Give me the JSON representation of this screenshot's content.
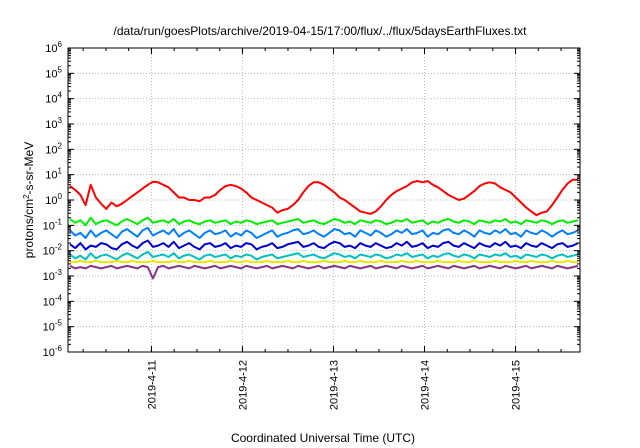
{
  "chart_data": {
    "type": "line",
    "title": "/data/run/goesPlots/archive/2019-04-15/17:00/flux/../flux/5daysEarthFluxes.txt",
    "xlabel": "Coordinated Universal Time (UTC)",
    "ylabel_parts": [
      "protons/cm",
      "2",
      "-s-sr-MeV"
    ],
    "y_scale": "log",
    "ylim_exp": [
      -6,
      6
    ],
    "y_ticks": [
      {
        "exp": "-6"
      },
      {
        "exp": "-5"
      },
      {
        "exp": "-4"
      },
      {
        "exp": "-3"
      },
      {
        "exp": "-2"
      },
      {
        "exp": "-1"
      },
      {
        "exp": "0"
      },
      {
        "exp": "1"
      },
      {
        "exp": "2"
      },
      {
        "exp": "3"
      },
      {
        "exp": "4"
      },
      {
        "exp": "5"
      },
      {
        "exp": "6"
      }
    ],
    "y_base": "10",
    "x_range_days": [
      "2019-04-10 02:00",
      "2019-04-15 17:00"
    ],
    "x_ticks": [
      "2019-4-11",
      "2019-4-12",
      "2019-4-13",
      "2019-4-14",
      "2019-4-15"
    ],
    "grid": true,
    "legend": "none",
    "series_note": "approximate log10 flux values sampled evenly across the time range",
    "series": [
      {
        "color": "#ff0000",
        "log_values": [
          0.55,
          0.4,
          0.2,
          -0.2,
          0.6,
          0.1,
          -0.15,
          -0.35,
          -0.1,
          -0.25,
          -0.15,
          0.0,
          0.15,
          0.3,
          0.45,
          0.6,
          0.72,
          0.7,
          0.6,
          0.5,
          0.3,
          0.1,
          0.1,
          0.0,
          0.0,
          -0.05,
          0.1,
          0.1,
          0.2,
          0.4,
          0.55,
          0.6,
          0.55,
          0.45,
          0.3,
          0.1,
          0.0,
          -0.1,
          -0.2,
          -0.3,
          -0.5,
          -0.4,
          -0.35,
          -0.2,
          0.0,
          0.3,
          0.55,
          0.7,
          0.7,
          0.6,
          0.45,
          0.3,
          0.1,
          0.0,
          -0.15,
          -0.3,
          -0.45,
          -0.5,
          -0.55,
          -0.45,
          -0.25,
          0.0,
          0.2,
          0.35,
          0.45,
          0.55,
          0.7,
          0.75,
          0.7,
          0.75,
          0.6,
          0.5,
          0.35,
          0.2,
          0.1,
          0.0,
          0.05,
          0.2,
          0.35,
          0.55,
          0.65,
          0.7,
          0.65,
          0.5,
          0.4,
          0.3,
          0.1,
          -0.1,
          -0.3,
          -0.45,
          -0.6,
          -0.5,
          -0.45,
          -0.2,
          0.1,
          0.4,
          0.65,
          0.8,
          0.8
        ]
      },
      {
        "color": "#00ee00",
        "log_values": [
          -0.75,
          -0.9,
          -0.8,
          -1.0,
          -0.7,
          -0.95,
          -0.85,
          -0.8,
          -0.9,
          -1.0,
          -0.85,
          -0.75,
          -0.85,
          -0.95,
          -0.8,
          -0.7,
          -0.9,
          -0.85,
          -0.8,
          -0.9,
          -0.75,
          -0.95,
          -0.85,
          -0.8,
          -0.9,
          -0.95,
          -0.85,
          -0.8,
          -0.9,
          -0.85,
          -0.8,
          -0.95,
          -0.85,
          -0.9,
          -0.8,
          -0.85,
          -0.95,
          -0.9,
          -0.85,
          -0.8,
          -0.95,
          -0.9,
          -0.85,
          -0.8,
          -0.75,
          -0.9,
          -0.85,
          -0.8,
          -0.9,
          -0.95,
          -0.85,
          -0.75,
          -0.8,
          -0.9,
          -0.85,
          -0.95,
          -0.8,
          -0.85,
          -0.9,
          -0.8,
          -0.85,
          -0.95,
          -0.9,
          -0.8,
          -0.85,
          -0.75,
          -0.9,
          -0.85,
          -0.8,
          -0.95,
          -0.85,
          -0.9,
          -0.8,
          -0.75,
          -0.85,
          -0.9,
          -0.8,
          -0.85,
          -0.95,
          -0.8,
          -0.85,
          -0.9,
          -0.8,
          -0.85,
          -0.75,
          -0.9,
          -0.85,
          -0.95,
          -0.8,
          -0.85,
          -0.9,
          -0.8,
          -0.85,
          -0.95,
          -0.85,
          -0.8,
          -0.9,
          -0.85,
          -0.8
        ]
      },
      {
        "color": "#0080ff",
        "log_values": [
          -1.2,
          -1.4,
          -1.3,
          -1.5,
          -1.2,
          -1.45,
          -1.3,
          -1.2,
          -1.35,
          -1.5,
          -1.25,
          -1.15,
          -1.3,
          -1.45,
          -1.2,
          -1.1,
          -1.4,
          -1.3,
          -1.2,
          -1.35,
          -1.15,
          -1.45,
          -1.3,
          -1.2,
          -1.35,
          -1.5,
          -1.3,
          -1.2,
          -1.35,
          -1.3,
          -1.2,
          -1.45,
          -1.3,
          -1.4,
          -1.2,
          -1.3,
          -1.5,
          -1.4,
          -1.3,
          -1.2,
          -1.45,
          -1.35,
          -1.3,
          -1.2,
          -1.15,
          -1.35,
          -1.3,
          -1.2,
          -1.35,
          -1.45,
          -1.3,
          -1.15,
          -1.2,
          -1.35,
          -1.3,
          -1.45,
          -1.2,
          -1.3,
          -1.4,
          -1.2,
          -1.3,
          -1.45,
          -1.35,
          -1.2,
          -1.3,
          -1.15,
          -1.35,
          -1.3,
          -1.2,
          -1.45,
          -1.3,
          -1.35,
          -1.2,
          -1.15,
          -1.3,
          -1.35,
          -1.2,
          -1.3,
          -1.45,
          -1.2,
          -1.3,
          -1.35,
          -1.2,
          -1.3,
          -1.15,
          -1.35,
          -1.3,
          -1.45,
          -1.2,
          -1.3,
          -1.35,
          -1.2,
          -1.3,
          -1.45,
          -1.3,
          -1.2,
          -1.35,
          -1.3,
          -1.2
        ]
      },
      {
        "color": "#0000cc",
        "log_values": [
          -1.75,
          -1.9,
          -1.7,
          -1.95,
          -1.8,
          -1.85,
          -1.7,
          -1.75,
          -1.9,
          -1.95,
          -1.75,
          -1.65,
          -1.8,
          -1.9,
          -1.7,
          -1.6,
          -1.85,
          -1.8,
          -1.7,
          -1.85,
          -1.65,
          -1.9,
          -1.8,
          -1.7,
          -1.85,
          -1.95,
          -1.75,
          -1.7,
          -1.85,
          -1.8,
          -1.7,
          -1.9,
          -1.8,
          -1.85,
          -1.7,
          -1.75,
          -1.95,
          -1.85,
          -1.8,
          -1.7,
          -1.9,
          -1.85,
          -1.75,
          -1.7,
          -1.65,
          -1.85,
          -1.8,
          -1.7,
          -1.85,
          -1.9,
          -1.75,
          -1.65,
          -1.7,
          -1.85,
          -1.8,
          -1.9,
          -1.7,
          -1.8,
          -1.85,
          -1.7,
          -1.8,
          -1.9,
          -1.85,
          -1.7,
          -1.8,
          -1.65,
          -1.85,
          -1.8,
          -1.7,
          -1.9,
          -1.8,
          -1.85,
          -1.7,
          -1.65,
          -1.8,
          -1.85,
          -1.7,
          -1.8,
          -1.9,
          -1.7,
          -1.8,
          -1.85,
          -1.7,
          -1.8,
          -1.65,
          -1.85,
          -1.8,
          -1.9,
          -1.7,
          -1.8,
          -1.85,
          -1.7,
          -1.8,
          -1.9,
          -1.75,
          -1.7,
          -1.85,
          -1.8,
          -1.7
        ]
      },
      {
        "color": "#00c0c0",
        "log_values": [
          -2.15,
          -2.3,
          -2.2,
          -2.35,
          -2.1,
          -2.3,
          -2.2,
          -2.15,
          -2.25,
          -2.35,
          -2.2,
          -2.1,
          -2.2,
          -2.3,
          -2.15,
          -2.05,
          -2.25,
          -2.2,
          -2.15,
          -2.25,
          -2.1,
          -2.3,
          -2.2,
          -2.15,
          -2.25,
          -2.35,
          -2.2,
          -2.15,
          -2.25,
          -2.2,
          -2.15,
          -2.3,
          -2.2,
          -2.25,
          -2.15,
          -2.2,
          -2.35,
          -2.25,
          -2.2,
          -2.15,
          -2.3,
          -2.25,
          -2.2,
          -2.15,
          -2.1,
          -2.25,
          -2.2,
          -2.15,
          -2.25,
          -2.3,
          -2.2,
          -2.1,
          -2.15,
          -2.25,
          -2.2,
          -2.3,
          -2.15,
          -2.2,
          -2.25,
          -2.15,
          -2.2,
          -2.3,
          -2.25,
          -2.15,
          -2.2,
          -2.1,
          -2.25,
          -2.2,
          -2.15,
          -2.3,
          -2.2,
          -2.25,
          -2.15,
          -2.1,
          -2.2,
          -2.25,
          -2.15,
          -2.2,
          -2.3,
          -2.15,
          -2.2,
          -2.25,
          -2.15,
          -2.2,
          -2.1,
          -2.25,
          -2.2,
          -2.3,
          -2.15,
          -2.2,
          -2.25,
          -2.15,
          -2.2,
          -2.3,
          -2.2,
          -2.15,
          -2.25,
          -2.2,
          -2.15
        ]
      },
      {
        "color": "#e8e800",
        "log_values": [
          -2.45,
          -2.45,
          -2.4,
          -2.45,
          -2.45,
          -2.4,
          -2.45,
          -2.45,
          -2.45,
          -2.4,
          -2.45,
          -2.45,
          -2.4,
          -2.45,
          -2.45,
          -2.45,
          -2.4,
          -2.45,
          -2.45,
          -2.45,
          -2.4,
          -2.45,
          -2.45,
          -2.4,
          -2.45,
          -2.45,
          -2.45,
          -2.4,
          -2.45,
          -2.45,
          -2.45,
          -2.4,
          -2.45,
          -2.45,
          -2.4,
          -2.45,
          -2.45,
          -2.45,
          -2.4,
          -2.45,
          -2.45,
          -2.45,
          -2.4,
          -2.45,
          -2.45,
          -2.4,
          -2.45,
          -2.45,
          -2.45,
          -2.4,
          -2.45,
          -2.45,
          -2.45,
          -2.4,
          -2.45,
          -2.45,
          -2.4,
          -2.45,
          -2.45,
          -2.45,
          -2.4,
          -2.45,
          -2.45,
          -2.45,
          -2.4,
          -2.45,
          -2.45,
          -2.4,
          -2.45,
          -2.45,
          -2.45,
          -2.4,
          -2.45,
          -2.45,
          -2.45,
          -2.4,
          -2.45,
          -2.45,
          -2.4,
          -2.45,
          -2.45,
          -2.45,
          -2.4,
          -2.45,
          -2.45,
          -2.45,
          -2.4,
          -2.45,
          -2.45,
          -2.4,
          -2.45,
          -2.45,
          -2.45,
          -2.4,
          -2.45,
          -2.45,
          -2.4,
          -2.45,
          -2.45
        ]
      },
      {
        "color": "#883388",
        "log_values": [
          -2.6,
          -2.7,
          -2.65,
          -2.7,
          -2.6,
          -2.65,
          -2.7,
          -2.65,
          -2.6,
          -2.7,
          -2.65,
          -2.6,
          -2.65,
          -2.7,
          -2.6,
          -2.65,
          -3.1,
          -2.65,
          -2.6,
          -2.7,
          -2.65,
          -2.6,
          -2.65,
          -2.7,
          -2.6,
          -2.65,
          -2.7,
          -2.65,
          -2.6,
          -2.7,
          -2.65,
          -2.6,
          -2.65,
          -2.7,
          -2.6,
          -2.65,
          -2.7,
          -2.65,
          -2.6,
          -2.7,
          -2.65,
          -2.6,
          -2.65,
          -2.7,
          -2.6,
          -2.65,
          -2.7,
          -2.65,
          -2.6,
          -2.7,
          -2.65,
          -2.6,
          -2.65,
          -2.7,
          -2.6,
          -2.65,
          -2.7,
          -2.65,
          -2.6,
          -2.7,
          -2.65,
          -2.6,
          -2.65,
          -2.7,
          -2.6,
          -2.65,
          -2.7,
          -2.65,
          -2.6,
          -2.7,
          -2.65,
          -2.6,
          -2.65,
          -2.7,
          -2.6,
          -2.65,
          -2.7,
          -2.65,
          -2.6,
          -2.7,
          -2.65,
          -2.6,
          -2.65,
          -2.7,
          -2.6,
          -2.65,
          -2.7,
          -2.65,
          -2.6,
          -2.7,
          -2.65,
          -2.6,
          -2.65,
          -2.7,
          -2.6,
          -2.65,
          -2.7,
          -2.65,
          -2.6
        ]
      }
    ]
  }
}
